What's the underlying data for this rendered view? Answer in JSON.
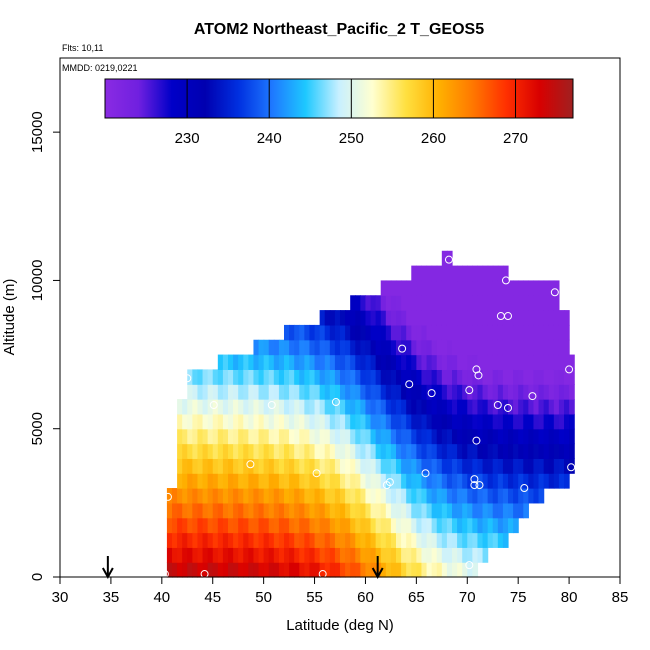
{
  "chart_data": {
    "type": "heatmap",
    "title": "ATOM2 Northeast_Pacific_2 T_GEOS5",
    "flights_label": "Flts: 10,11",
    "dates_label": "MMDD: 0219,0221",
    "xlabel": "Latitude (deg N)",
    "ylabel": "Altitude (m)",
    "xlim": [
      30,
      85
    ],
    "ylim": [
      0,
      17500
    ],
    "x_ticks": [
      30,
      35,
      40,
      45,
      50,
      55,
      60,
      65,
      70,
      75,
      80,
      85
    ],
    "y_ticks": [
      0,
      5000,
      10000,
      15000
    ],
    "colorbar": {
      "range": [
        220,
        277
      ],
      "ticks": [
        230,
        240,
        250,
        260,
        270
      ],
      "colors": [
        "#8a2be2",
        "#7020e0",
        "#0000c8",
        "#0000b0",
        "#0030e0",
        "#1e78ff",
        "#1ec8ff",
        "#c8f0ff",
        "#ffffd0",
        "#ffe040",
        "#ffb000",
        "#ff7800",
        "#ff3000",
        "#d80000",
        "#a02020"
      ]
    },
    "arrows_lat": [
      34.7,
      61.2
    ],
    "cell_size": {
      "dlat": 0.5,
      "dalt": 500
    },
    "columns": [
      {
        "lat0": 40.5,
        "lat1": 41.5,
        "alt_min": 0,
        "alt_max": 3000
      },
      {
        "lat0": 41.5,
        "lat1": 42.0,
        "alt_min": 0,
        "alt_max": 6000
      },
      {
        "lat0": 42.0,
        "lat1": 42.5,
        "alt_min": 0,
        "alt_max": 6000
      },
      {
        "lat0": 42.5,
        "lat1": 45.5,
        "alt_min": 0,
        "alt_max": 7000
      },
      {
        "lat0": 45.5,
        "lat1": 49.0,
        "alt_min": 0,
        "alt_max": 7500
      },
      {
        "lat0": 49.0,
        "lat1": 52.0,
        "alt_min": 0,
        "alt_max": 8000
      },
      {
        "lat0": 52.0,
        "lat1": 55.5,
        "alt_min": 0,
        "alt_max": 8500
      },
      {
        "lat0": 55.5,
        "lat1": 58.5,
        "alt_min": 0,
        "alt_max": 9000
      },
      {
        "lat0": 58.5,
        "lat1": 61.5,
        "alt_min": 0,
        "alt_max": 9500
      },
      {
        "lat0": 61.5,
        "lat1": 64.5,
        "alt_min": 0,
        "alt_max": 10000
      },
      {
        "lat0": 64.5,
        "lat1": 67.5,
        "alt_min": 0,
        "alt_max": 10500
      },
      {
        "lat0": 67.5,
        "lat1": 68.5,
        "alt_min": 0,
        "alt_max": 11000
      },
      {
        "lat0": 68.5,
        "lat1": 71.0,
        "alt_min": 0,
        "alt_max": 10500
      },
      {
        "lat0": 71.0,
        "lat1": 72.0,
        "alt_min": 500,
        "alt_max": 10500
      },
      {
        "lat0": 72.0,
        "lat1": 74.0,
        "alt_min": 1000,
        "alt_max": 10500
      },
      {
        "lat0": 74.0,
        "lat1": 75.0,
        "alt_min": 1500,
        "alt_max": 10000
      },
      {
        "lat0": 75.0,
        "lat1": 76.0,
        "alt_min": 2000,
        "alt_max": 10000
      },
      {
        "lat0": 76.0,
        "lat1": 77.5,
        "alt_min": 2500,
        "alt_max": 10000
      },
      {
        "lat0": 77.5,
        "lat1": 79.0,
        "alt_min": 3000,
        "alt_max": 10000
      },
      {
        "lat0": 79.0,
        "lat1": 80.0,
        "alt_min": 3000,
        "alt_max": 9000
      },
      {
        "lat0": 80.0,
        "lat1": 80.5,
        "alt_min": 3500,
        "alt_max": 7500
      }
    ],
    "temperature_model": {
      "surface_T_south": 275,
      "surface_T_north": 249,
      "lapse_rate_per_m": 0.0042,
      "front_center_lat": 62,
      "front_width_deg": 3.5,
      "min_T": 221
    },
    "observations": [
      {
        "lat": 40.3,
        "alt": 100
      },
      {
        "lat": 44.2,
        "alt": 100
      },
      {
        "lat": 55.8,
        "alt": 100
      },
      {
        "lat": 70.2,
        "alt": 400
      },
      {
        "lat": 40.6,
        "alt": 2700
      },
      {
        "lat": 48.7,
        "alt": 3800
      },
      {
        "lat": 55.2,
        "alt": 3500
      },
      {
        "lat": 62.1,
        "alt": 3100
      },
      {
        "lat": 62.4,
        "alt": 3200
      },
      {
        "lat": 65.9,
        "alt": 3500
      },
      {
        "lat": 70.7,
        "alt": 3100
      },
      {
        "lat": 70.7,
        "alt": 3300
      },
      {
        "lat": 71.2,
        "alt": 3100
      },
      {
        "lat": 75.6,
        "alt": 3000
      },
      {
        "lat": 80.2,
        "alt": 3700
      },
      {
        "lat": 70.9,
        "alt": 4600
      },
      {
        "lat": 45.1,
        "alt": 5800
      },
      {
        "lat": 50.8,
        "alt": 5800
      },
      {
        "lat": 57.1,
        "alt": 5900
      },
      {
        "lat": 73.0,
        "alt": 5800
      },
      {
        "lat": 74.0,
        "alt": 5700
      },
      {
        "lat": 42.5,
        "alt": 6700
      },
      {
        "lat": 64.3,
        "alt": 6500
      },
      {
        "lat": 66.5,
        "alt": 6200
      },
      {
        "lat": 70.2,
        "alt": 6300
      },
      {
        "lat": 71.1,
        "alt": 6800
      },
      {
        "lat": 70.9,
        "alt": 7000
      },
      {
        "lat": 76.4,
        "alt": 6100
      },
      {
        "lat": 80.0,
        "alt": 7000
      },
      {
        "lat": 63.6,
        "alt": 7700
      },
      {
        "lat": 73.3,
        "alt": 8800
      },
      {
        "lat": 74.0,
        "alt": 8800
      },
      {
        "lat": 68.2,
        "alt": 10700
      },
      {
        "lat": 73.8,
        "alt": 10000
      },
      {
        "lat": 78.6,
        "alt": 9600
      }
    ]
  }
}
